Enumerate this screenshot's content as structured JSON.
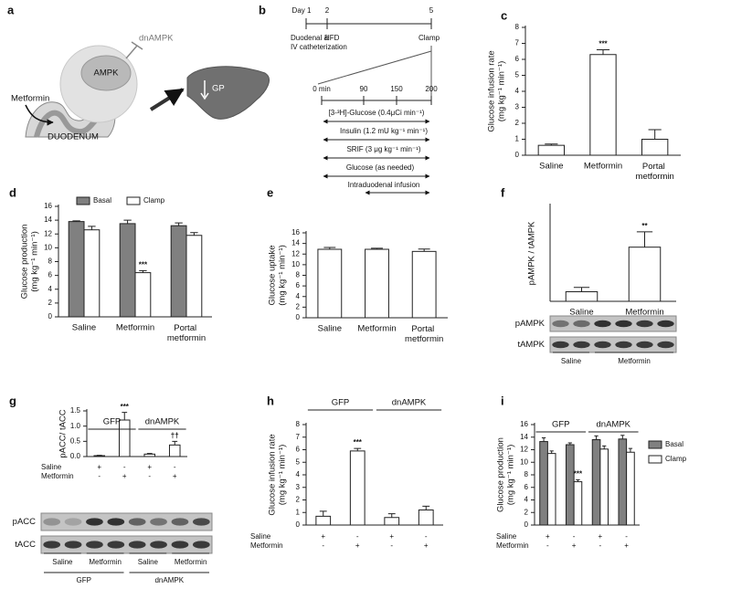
{
  "diagram_a": {
    "panel": "a",
    "dnampk": "dnAMPK",
    "ampk": "AMPK",
    "metformin": "Metformin",
    "gp": "GP",
    "duodenum": "DUODENUM"
  },
  "diagram_b": {
    "panel": "b",
    "day1": "Day 1",
    "day2": "2",
    "day5": "5",
    "cath1": "Duodenal &",
    "cath2": "IV catheterization",
    "hfd": "HFD",
    "clamp": "Clamp",
    "t0": "0 min",
    "t90": "90",
    "t150": "150",
    "t200": "200",
    "glucose_tracer": "[3-³H]-Glucose (0.4μCi min⁻¹)",
    "insulin": "Insulin (1.2 mU kg⁻¹ min⁻¹)",
    "srif": "SRIF (3 μg kg⁻¹ min⁻¹)",
    "glucose": "Glucose (as needed)",
    "intraduodenal": "Intraduodenal infusion"
  },
  "chart_data": [
    {
      "panel": "c",
      "type": "bar",
      "ylabel": [
        "Glucose infusion rate",
        "(mg kg⁻¹ min⁻¹)"
      ],
      "categories": [
        "Saline",
        "Metformin",
        "Portal metformin"
      ],
      "values": [
        0.62,
        6.3,
        1.0
      ],
      "errors": [
        0.08,
        0.3,
        0.6
      ],
      "significance": [
        null,
        "***",
        null
      ],
      "color": "#ffffff",
      "ylim": [
        0,
        8
      ],
      "yticks": [
        0,
        1,
        2,
        3,
        4,
        5,
        6,
        7,
        8
      ]
    },
    {
      "panel": "d",
      "type": "bar",
      "ylabel": [
        "Glucose production",
        "(mg kg⁻¹ min⁻¹)"
      ],
      "categories": [
        "Saline",
        "Metformin",
        "Portal metformin"
      ],
      "series": [
        {
          "name": "Basal",
          "color": "#808080",
          "values": [
            13.8,
            13.5,
            13.2
          ],
          "errors": [
            0.1,
            0.5,
            0.4
          ]
        },
        {
          "name": "Clamp",
          "color": "#ffffff",
          "values": [
            12.6,
            6.4,
            11.8
          ],
          "errors": [
            0.5,
            0.3,
            0.4
          ],
          "significance": [
            null,
            "***",
            null
          ]
        }
      ],
      "legend": "top",
      "ylim": [
        0,
        16
      ],
      "yticks": [
        0,
        2,
        4,
        6,
        8,
        10,
        12,
        14,
        16
      ]
    },
    {
      "panel": "e",
      "type": "bar",
      "ylabel": [
        "Glucose  uptake",
        "(mg kg⁻¹ min⁻¹)"
      ],
      "categories": [
        "Saline",
        "Metformin",
        "Portal metformin"
      ],
      "values": [
        12.9,
        12.9,
        12.5
      ],
      "errors": [
        0.35,
        0.2,
        0.45
      ],
      "color": "#ffffff",
      "ylim": [
        0,
        16
      ],
      "yticks": [
        0,
        2,
        4,
        6,
        8,
        10,
        12,
        14,
        16
      ]
    },
    {
      "panel": "f",
      "type": "bar",
      "ylabel": [
        "pAMPK / tAMPK"
      ],
      "categories": [
        "Saline",
        "Metformin"
      ],
      "values": [
        0.2,
        1.13
      ],
      "errors": [
        0.09,
        0.32
      ],
      "significance": [
        null,
        "**"
      ],
      "color": "#ffffff",
      "ylim": [
        0,
        2
      ],
      "blot": {
        "rows": [
          "pAMPK",
          "tAMPK"
        ],
        "groups": [
          "Saline",
          "Metformin"
        ]
      }
    },
    {
      "panel": "g",
      "type": "bar",
      "ylabel": [
        "pACC/ tACC"
      ],
      "categories": [
        null,
        null,
        null,
        null
      ],
      "values": [
        0.03,
        1.2,
        0.08,
        0.38
      ],
      "errors": [
        0.01,
        0.25,
        0.02,
        0.12
      ],
      "significance": [
        null,
        "***",
        null,
        "††"
      ],
      "color": "#ffffff",
      "ylim": [
        0,
        1.5
      ],
      "yticks": [
        {
          "value": 0,
          "label": "0.0"
        },
        0.5,
        {
          "value": 1,
          "label": "1.0"
        },
        1.5
      ],
      "groups": [
        "GFP",
        "dnAMPK"
      ],
      "conditions": [
        {
          "name": "Saline",
          "signs": [
            "+",
            "-",
            "+",
            "-"
          ]
        },
        {
          "name": "Metformin",
          "signs": [
            "-",
            "+",
            "-",
            "+"
          ]
        }
      ],
      "blot": {
        "rows": [
          "pACC",
          "tACC"
        ],
        "groups": [
          "Saline",
          "Metformin",
          "Saline",
          "Metformin"
        ],
        "supergroups": [
          "GFP",
          "dnAMPK"
        ]
      }
    },
    {
      "panel": "h",
      "type": "bar",
      "ylabel": [
        "Glucose infusion rate",
        "(mg kg⁻¹ min⁻¹)"
      ],
      "categories": [
        null,
        null,
        null,
        null
      ],
      "values": [
        0.7,
        5.9,
        0.6,
        1.2
      ],
      "errors": [
        0.4,
        0.2,
        0.3,
        0.3
      ],
      "significance": [
        null,
        "***",
        null,
        null
      ],
      "color": "#ffffff",
      "ylim": [
        0,
        8
      ],
      "yticks": [
        0,
        1,
        2,
        3,
        4,
        5,
        6,
        7,
        8
      ],
      "groups": [
        "GFP",
        "dnAMPK"
      ],
      "conditions": [
        {
          "name": "Saline",
          "signs": [
            "+",
            "-",
            "+",
            "-"
          ]
        },
        {
          "name": "Metformin",
          "signs": [
            "-",
            "+",
            "-",
            "+"
          ]
        }
      ]
    },
    {
      "panel": "i",
      "type": "bar",
      "ylabel": [
        "Glucose production",
        "(mg kg⁻¹ min⁻¹)"
      ],
      "categories": [
        null,
        null,
        null,
        null
      ],
      "series": [
        {
          "name": "Basal",
          "color": "#808080",
          "values": [
            13.3,
            12.8,
            13.6,
            13.7
          ],
          "errors": [
            0.6,
            0.3,
            0.6,
            0.6
          ]
        },
        {
          "name": "Clamp",
          "color": "#ffffff",
          "values": [
            11.4,
            6.9,
            12.1,
            11.6
          ],
          "errors": [
            0.4,
            0.3,
            0.5,
            0.6
          ],
          "significance": [
            null,
            "***",
            null,
            null
          ]
        }
      ],
      "legend": "right",
      "ylim": [
        0,
        16
      ],
      "yticks": [
        0,
        2,
        4,
        6,
        8,
        10,
        12,
        14,
        16
      ],
      "groups": [
        "GFP",
        "dnAMPK"
      ],
      "conditions": [
        {
          "name": "Saline",
          "signs": [
            "+",
            "-",
            "+",
            "-"
          ]
        },
        {
          "name": "Metformin",
          "signs": [
            "-",
            "+",
            "-",
            "+"
          ]
        }
      ]
    }
  ]
}
